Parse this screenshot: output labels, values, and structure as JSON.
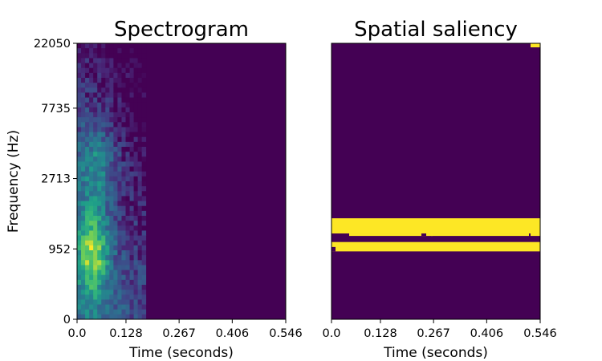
{
  "colors": {
    "viridis_low": "#440154",
    "viridis_mid": "#21918c",
    "viridis_high": "#fde725"
  },
  "chart_data": [
    {
      "type": "heatmap",
      "title": "Spectrogram",
      "xlabel": "Time (seconds)",
      "ylabel": "Frequency (Hz)",
      "xticks": [
        "0.0",
        "0.128",
        "0.267",
        "0.406",
        "0.546"
      ],
      "xtick_values": [
        0.0,
        0.128,
        0.267,
        0.406,
        0.546
      ],
      "yticks": [
        "0",
        "952",
        "2713",
        "7735",
        "22050"
      ],
      "xlim": [
        0.0,
        0.546
      ],
      "yscale": "log-like (mel)",
      "colormap": "viridis",
      "notes_visible": "energy concentrated in first ~0.18 s, strongest below ~2 kHz; rest of the spectrogram is dark",
      "active_time_range": [
        0.0,
        0.18
      ]
    },
    {
      "type": "heatmap",
      "title": "Spatial saliency",
      "xlabel": "Time (seconds)",
      "xticks": [
        "0.0",
        "0.128",
        "0.267",
        "0.406",
        "0.546"
      ],
      "xtick_values": [
        0.0,
        0.128,
        0.267,
        0.406,
        0.546
      ],
      "xlim": [
        0.0,
        0.546
      ],
      "colormap": "viridis",
      "salient_bands": [
        {
          "y_from": 0.372,
          "y_to": 0.31,
          "t_from": 0.0,
          "t_to": 0.546
        },
        {
          "y_from": 0.282,
          "y_to": 0.248,
          "t_from": 0.0,
          "t_to": 0.546
        }
      ],
      "corner_mark": {
        "t_from": 0.52,
        "t_to": 0.546,
        "y_from": 0.0,
        "y_to": 0.015
      }
    }
  ]
}
